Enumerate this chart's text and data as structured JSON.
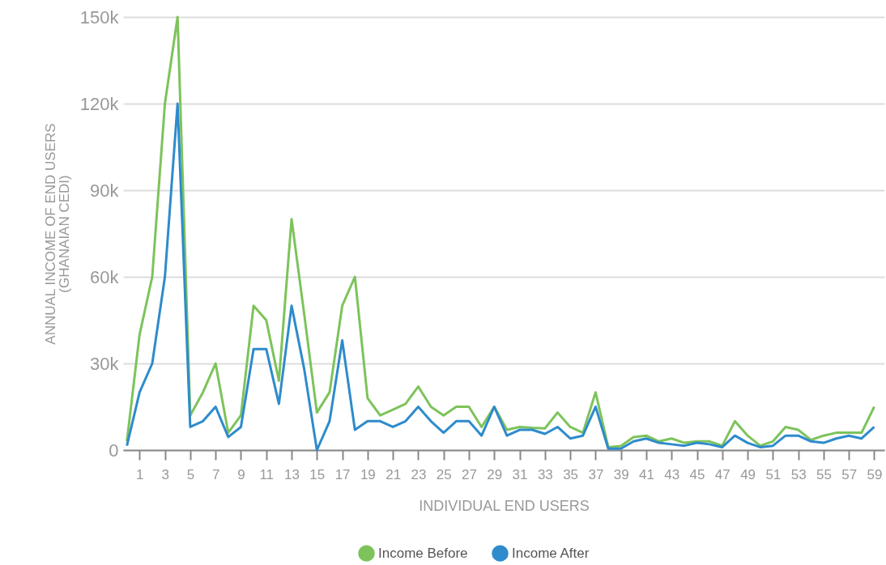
{
  "chart_data": {
    "type": "line",
    "xlabel": "INDIVIDUAL END USERS",
    "ylabel": "ANNUAL INCOME OF END USERS\n(GHANAIAN CEDI)",
    "x": [
      0,
      1,
      2,
      3,
      4,
      5,
      6,
      7,
      8,
      9,
      10,
      11,
      12,
      13,
      14,
      15,
      16,
      17,
      18,
      19,
      20,
      21,
      22,
      23,
      24,
      25,
      26,
      27,
      28,
      29,
      30,
      31,
      32,
      33,
      34,
      35,
      36,
      37,
      38,
      39,
      40,
      41,
      42,
      43,
      44,
      45,
      46,
      47,
      48,
      49,
      50,
      51,
      52,
      53,
      54,
      55,
      56,
      57,
      58,
      59
    ],
    "series": [
      {
        "name": "Income Before",
        "color": "#7dc35b",
        "values": [
          3000,
          40000,
          60000,
          120000,
          150000,
          12000,
          20000,
          30000,
          6000,
          12000,
          50000,
          45000,
          24000,
          80000,
          47000,
          13000,
          20000,
          50000,
          60000,
          18000,
          12000,
          14000,
          16000,
          22000,
          15000,
          12000,
          15000,
          15000,
          8000,
          15000,
          7000,
          8000,
          7700,
          7500,
          13000,
          8000,
          6000,
          20000,
          1000,
          1400,
          4500,
          5000,
          3000,
          4000,
          2500,
          3000,
          3000,
          1500,
          10000,
          5000,
          1500,
          3000,
          8000,
          7000,
          3500,
          5000,
          6000,
          6000,
          6000,
          15000
        ]
      },
      {
        "name": "Income After",
        "color": "#2e8bcc",
        "values": [
          1500,
          20000,
          30000,
          60000,
          120000,
          8000,
          10000,
          15000,
          4500,
          8000,
          35000,
          35000,
          16000,
          50000,
          28000,
          0,
          10000,
          38000,
          7000,
          10000,
          10000,
          8000,
          10000,
          15000,
          10000,
          6000,
          10000,
          10000,
          5000,
          15000,
          5000,
          7000,
          7000,
          5600,
          8000,
          4000,
          5000,
          15000,
          500,
          500,
          3000,
          4000,
          2500,
          2000,
          1500,
          2500,
          2000,
          1000,
          5000,
          2500,
          1000,
          1500,
          5000,
          5000,
          3000,
          2500,
          4000,
          5000,
          4000,
          8000
        ]
      }
    ],
    "xlim": [
      -0.3,
      59.8
    ],
    "xticks": [
      1,
      3,
      5,
      7,
      9,
      11,
      13,
      15,
      17,
      19,
      21,
      23,
      25,
      27,
      29,
      31,
      33,
      35,
      37,
      39,
      41,
      43,
      45,
      47,
      49,
      51,
      53,
      55,
      57,
      59
    ],
    "ylim": [
      0,
      150000
    ],
    "yticks": [
      {
        "value": 0,
        "label": "0"
      },
      {
        "value": 30000,
        "label": "30k"
      },
      {
        "value": 60000,
        "label": "60k"
      },
      {
        "value": 90000,
        "label": "90k"
      },
      {
        "value": 120000,
        "label": "120k"
      },
      {
        "value": 150000,
        "label": "150k"
      }
    ],
    "grid": "y",
    "legend": "bottom",
    "marker": "none",
    "line_style": "solid"
  }
}
